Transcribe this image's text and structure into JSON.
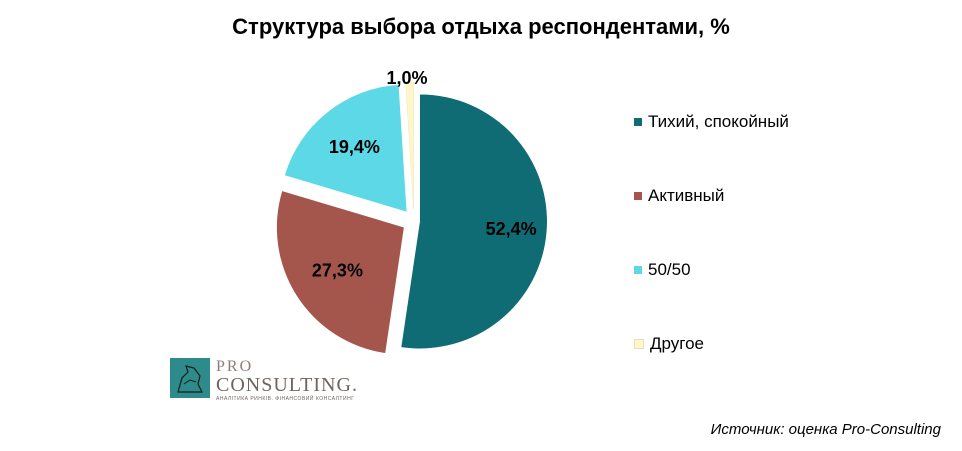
{
  "chart_data": {
    "type": "pie",
    "title": "Структура выбора отдыха респондентами, %",
    "categories": [
      "Тихий, спокойный",
      "Активный",
      "50/50",
      "Другое"
    ],
    "values": [
      52.4,
      27.3,
      19.4,
      1.0
    ],
    "value_labels": [
      "52,4%",
      "27,3%",
      "19,4%",
      "1,0%"
    ],
    "colors": [
      "#0f6b74",
      "#a5564c",
      "#5cd8e6",
      "#fff7cc"
    ],
    "legend_position": "right",
    "exploded": true
  },
  "logo": {
    "word1": "PRO",
    "word2": "CONSULTING.",
    "tagline": "АНАЛІТИКА РИНКІВ. ФІНАНСОВИЙ КОНСАЛТИНГ"
  },
  "source": "Источник: оценка Pro-Consulting"
}
